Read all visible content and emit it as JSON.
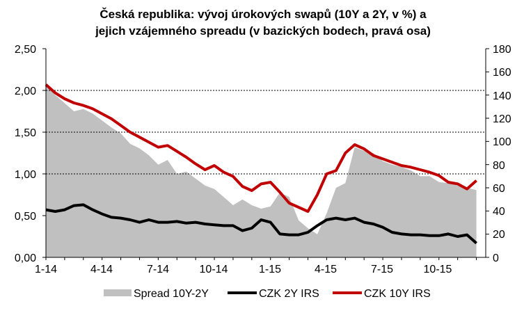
{
  "chart_data": {
    "type": "line",
    "title_lines": [
      "Česká republika: vývoj úrokových swapů (10Y a 2Y, v %) a",
      "jejich vzájemného spreadu (v bazických bodech, pravá osa)"
    ],
    "x_tick_labels": [
      "1-14",
      "4-14",
      "7-14",
      "10-14",
      "1-15",
      "4-15",
      "7-15",
      "10-15"
    ],
    "y_left": {
      "ticks": [
        "0,00",
        "0,50",
        "1,00",
        "1,50",
        "2,00",
        "2,50"
      ],
      "min": 0,
      "max": 2.5
    },
    "y_right": {
      "ticks": [
        "0",
        "20",
        "40",
        "60",
        "80",
        "100",
        "120",
        "140",
        "160",
        "180"
      ],
      "min": 0,
      "max": 180
    },
    "gridlines": [
      1.0,
      1.5,
      2.0
    ],
    "legend_position": "bottom",
    "x_months": [
      0,
      0.5,
      1,
      1.5,
      2,
      2.5,
      3,
      3.5,
      4,
      4.5,
      5,
      5.5,
      6,
      6.5,
      7,
      7.5,
      8,
      8.5,
      9,
      9.5,
      10,
      10.5,
      11,
      11.5,
      12,
      12.5,
      13,
      13.5,
      14,
      14.5,
      15,
      15.5,
      16,
      16.5,
      17,
      17.5,
      18,
      18.5,
      19,
      19.5,
      20,
      20.5,
      21,
      21.5,
      22,
      22.5,
      23
    ],
    "series": [
      {
        "name": "Spread 10Y-2Y",
        "axis": "right",
        "kind": "area",
        "color": "#c0c0c0",
        "values": [
          150,
          140,
          133,
          126,
          128,
          124,
          118,
          112,
          107,
          98,
          94,
          88,
          80,
          84,
          72,
          74,
          68,
          62,
          59,
          52,
          45,
          50,
          45,
          42,
          44,
          56,
          52,
          32,
          25,
          20,
          38,
          60,
          64,
          95,
          92,
          90,
          83,
          80,
          78,
          75,
          70,
          70,
          65,
          64,
          62,
          60,
          58
        ]
      },
      {
        "name": "CZK 2Y IRS",
        "axis": "left",
        "kind": "line",
        "color": "#000000",
        "values": [
          0.57,
          0.55,
          0.57,
          0.62,
          0.63,
          0.57,
          0.52,
          0.48,
          0.47,
          0.45,
          0.42,
          0.45,
          0.42,
          0.42,
          0.43,
          0.41,
          0.42,
          0.4,
          0.39,
          0.38,
          0.38,
          0.32,
          0.35,
          0.45,
          0.42,
          0.28,
          0.27,
          0.27,
          0.3,
          0.38,
          0.45,
          0.47,
          0.45,
          0.47,
          0.42,
          0.4,
          0.36,
          0.3,
          0.28,
          0.27,
          0.27,
          0.26,
          0.26,
          0.28,
          0.25,
          0.27,
          0.17
        ]
      },
      {
        "name": "CZK 10Y IRS",
        "axis": "left",
        "kind": "line",
        "color": "#c00000",
        "values": [
          2.07,
          1.97,
          1.9,
          1.85,
          1.82,
          1.78,
          1.72,
          1.66,
          1.58,
          1.5,
          1.44,
          1.38,
          1.32,
          1.34,
          1.27,
          1.2,
          1.12,
          1.05,
          1.1,
          1.02,
          0.97,
          0.85,
          0.8,
          0.88,
          0.9,
          0.78,
          0.65,
          0.6,
          0.55,
          0.75,
          1.0,
          1.04,
          1.25,
          1.35,
          1.3,
          1.22,
          1.18,
          1.14,
          1.1,
          1.08,
          1.05,
          1.02,
          0.98,
          0.9,
          0.88,
          0.82,
          0.92
        ]
      }
    ]
  }
}
